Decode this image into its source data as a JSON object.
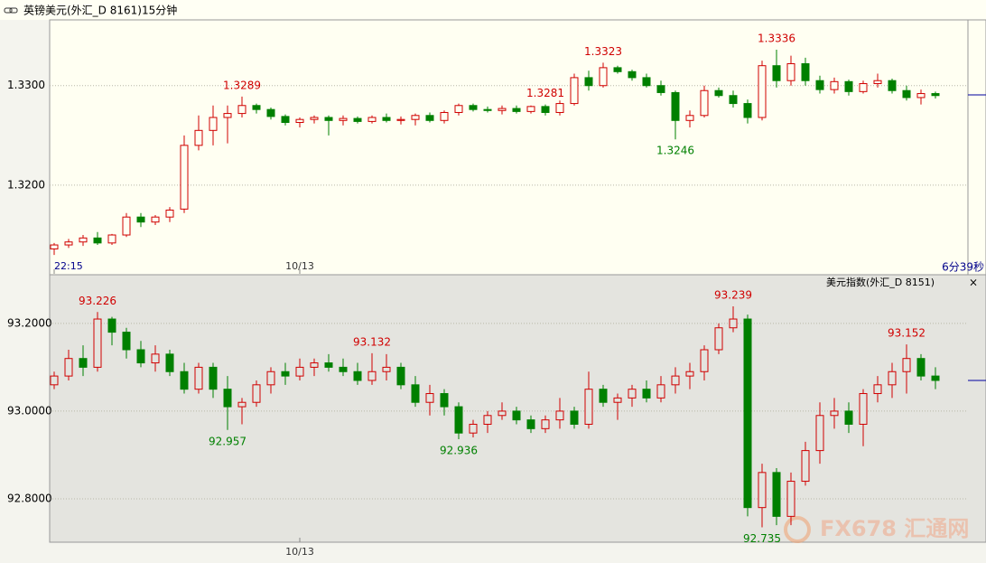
{
  "header": {
    "title": "英镑美元(外汇_D 8161)15分钟",
    "countdown": "6分39秒",
    "watermark": "FX678 汇通网"
  },
  "chart_data": [
    {
      "type": "candlestick",
      "title": "英镑美元(外汇_D 8161)15分钟",
      "ylim": [
        1.3111,
        1.3366
      ],
      "yticks": [
        {
          "value": 1.32,
          "label": "1.3200"
        },
        {
          "value": 1.33,
          "label": "1.3300"
        }
      ],
      "grid": true,
      "up_color": "#d00000",
      "down_color": "#008000",
      "categories": [
        "22:15",
        null,
        null,
        null,
        null,
        null,
        null,
        null,
        null,
        null,
        null,
        null,
        null,
        null,
        null,
        null,
        null,
        "10/13",
        null,
        null,
        null,
        null,
        null,
        null,
        null,
        null,
        null,
        null,
        null,
        null,
        null,
        null,
        null,
        null,
        null,
        null,
        null,
        null,
        null,
        null,
        null,
        null,
        null,
        null,
        null,
        null,
        null,
        null,
        null,
        null,
        null,
        null,
        null,
        null,
        null,
        null,
        null,
        null,
        null,
        null,
        null,
        null
      ],
      "annotations": [
        "1.3289",
        "1.3323",
        "1.3336",
        "1.3246",
        "1.3281"
      ],
      "series": [
        {
          "name": "英镑美元",
          "ohlc": [
            [
              1.3136,
              1.3142,
              1.313,
              1.314
            ],
            [
              1.314,
              1.3146,
              1.3137,
              1.3143
            ],
            [
              1.3143,
              1.315,
              1.3139,
              1.3147
            ],
            [
              1.3147,
              1.3153,
              1.314,
              1.3142
            ],
            [
              1.3142,
              1.3151,
              1.314,
              1.315
            ],
            [
              1.315,
              1.3172,
              1.3148,
              1.3168
            ],
            [
              1.3168,
              1.3172,
              1.3158,
              1.3163
            ],
            [
              1.3163,
              1.317,
              1.316,
              1.3168
            ],
            [
              1.3168,
              1.3178,
              1.3163,
              1.3175
            ],
            [
              1.3176,
              1.325,
              1.3172,
              1.324
            ],
            [
              1.324,
              1.327,
              1.3235,
              1.3255
            ],
            [
              1.3255,
              1.328,
              1.324,
              1.3268
            ],
            [
              1.3268,
              1.328,
              1.3242,
              1.3272
            ],
            [
              1.3272,
              1.3289,
              1.3268,
              1.328
            ],
            [
              1.328,
              1.3282,
              1.3272,
              1.3276
            ],
            [
              1.3276,
              1.3278,
              1.3266,
              1.3269
            ],
            [
              1.3269,
              1.3271,
              1.326,
              1.3263
            ],
            [
              1.3263,
              1.3268,
              1.3258,
              1.3266
            ],
            [
              1.3266,
              1.327,
              1.3262,
              1.3268
            ],
            [
              1.3268,
              1.327,
              1.325,
              1.3265
            ],
            [
              1.3265,
              1.327,
              1.326,
              1.3267
            ],
            [
              1.3267,
              1.3269,
              1.3262,
              1.3264
            ],
            [
              1.3264,
              1.327,
              1.3262,
              1.3268
            ],
            [
              1.3268,
              1.3272,
              1.3263,
              1.3265
            ],
            [
              1.3265,
              1.3269,
              1.3261,
              1.3266
            ],
            [
              1.3266,
              1.3272,
              1.326,
              1.327
            ],
            [
              1.327,
              1.3273,
              1.3263,
              1.3265
            ],
            [
              1.3265,
              1.3275,
              1.3262,
              1.3273
            ],
            [
              1.3273,
              1.3282,
              1.327,
              1.328
            ],
            [
              1.328,
              1.3282,
              1.3274,
              1.3276
            ],
            [
              1.3276,
              1.3279,
              1.3273,
              1.3275
            ],
            [
              1.3275,
              1.328,
              1.3271,
              1.3277
            ],
            [
              1.3277,
              1.328,
              1.3272,
              1.3274
            ],
            [
              1.3274,
              1.328,
              1.3272,
              1.3279
            ],
            [
              1.3279,
              1.3281,
              1.327,
              1.3273
            ],
            [
              1.3273,
              1.3285,
              1.327,
              1.3282
            ],
            [
              1.3282,
              1.3312,
              1.328,
              1.3308
            ],
            [
              1.3308,
              1.3315,
              1.3295,
              1.33
            ],
            [
              1.33,
              1.3323,
              1.3298,
              1.3318
            ],
            [
              1.3318,
              1.332,
              1.3312,
              1.3314
            ],
            [
              1.3314,
              1.3316,
              1.3305,
              1.3308
            ],
            [
              1.3308,
              1.3312,
              1.3298,
              1.33
            ],
            [
              1.33,
              1.3305,
              1.329,
              1.3293
            ],
            [
              1.3293,
              1.3295,
              1.3246,
              1.3265
            ],
            [
              1.3265,
              1.3275,
              1.3258,
              1.327
            ],
            [
              1.327,
              1.33,
              1.3268,
              1.3295
            ],
            [
              1.3295,
              1.3298,
              1.3288,
              1.329
            ],
            [
              1.329,
              1.3295,
              1.3278,
              1.3282
            ],
            [
              1.3282,
              1.3286,
              1.3262,
              1.3268
            ],
            [
              1.3268,
              1.3325,
              1.3265,
              1.332
            ],
            [
              1.332,
              1.3336,
              1.3298,
              1.3305
            ],
            [
              1.3305,
              1.333,
              1.33,
              1.3322
            ],
            [
              1.3322,
              1.3328,
              1.33,
              1.3305
            ],
            [
              1.3305,
              1.331,
              1.3292,
              1.3296
            ],
            [
              1.3296,
              1.3308,
              1.3292,
              1.3304
            ],
            [
              1.3304,
              1.3306,
              1.329,
              1.3294
            ],
            [
              1.3294,
              1.3305,
              1.3292,
              1.3302
            ],
            [
              1.3302,
              1.3312,
              1.3298,
              1.3305
            ],
            [
              1.3305,
              1.3307,
              1.3292,
              1.3295
            ],
            [
              1.3295,
              1.33,
              1.3285,
              1.3288
            ],
            [
              1.3288,
              1.3296,
              1.3281,
              1.3292
            ],
            [
              1.3292,
              1.3294,
              1.3287,
              1.329
            ]
          ]
        }
      ]
    },
    {
      "type": "candlestick",
      "title": "美元指数(外汇_D 8151)",
      "ylim": [
        92.701,
        93.309
      ],
      "yticks": [
        {
          "value": 92.8,
          "label": "92.8000"
        },
        {
          "value": 93.0,
          "label": "93.0000"
        },
        {
          "value": 93.2,
          "label": "93.2000"
        }
      ],
      "grid": true,
      "up_color": "#d00000",
      "down_color": "#008000",
      "categories": [
        null,
        null,
        null,
        null,
        null,
        null,
        null,
        null,
        null,
        null,
        null,
        null,
        null,
        null,
        null,
        null,
        null,
        "10/13",
        null,
        null,
        null,
        null,
        null,
        null,
        null,
        null,
        null,
        null,
        null,
        null,
        null,
        null,
        null,
        null,
        null,
        null,
        null,
        null,
        null,
        null,
        null,
        null,
        null,
        null,
        null,
        null,
        null,
        null,
        null,
        null,
        null,
        null,
        null,
        null,
        null,
        null,
        null,
        null,
        null,
        null,
        null,
        null
      ],
      "annotations": [
        "93.226",
        "92.957",
        "93.132",
        "92.936",
        "93.239",
        "92.735",
        "93.152"
      ],
      "series": [
        {
          "name": "美元指数",
          "ohlc": [
            [
              93.06,
              93.09,
              93.05,
              93.08
            ],
            [
              93.08,
              93.14,
              93.07,
              93.12
            ],
            [
              93.12,
              93.15,
              93.08,
              93.1
            ],
            [
              93.1,
              93.226,
              93.09,
              93.21
            ],
            [
              93.21,
              93.215,
              93.15,
              93.18
            ],
            [
              93.18,
              93.19,
              93.12,
              93.14
            ],
            [
              93.14,
              93.16,
              93.1,
              93.11
            ],
            [
              93.11,
              93.15,
              93.09,
              93.13
            ],
            [
              93.13,
              93.14,
              93.08,
              93.09
            ],
            [
              93.09,
              93.11,
              93.04,
              93.05
            ],
            [
              93.05,
              93.11,
              93.04,
              93.1
            ],
            [
              93.1,
              93.11,
              93.03,
              93.05
            ],
            [
              93.05,
              93.08,
              92.957,
              93.01
            ],
            [
              93.01,
              93.03,
              92.97,
              93.02
            ],
            [
              93.02,
              93.07,
              93.01,
              93.06
            ],
            [
              93.06,
              93.1,
              93.04,
              93.09
            ],
            [
              93.09,
              93.11,
              93.06,
              93.08
            ],
            [
              93.08,
              93.12,
              93.07,
              93.1
            ],
            [
              93.1,
              93.12,
              93.08,
              93.11
            ],
            [
              93.11,
              93.13,
              93.09,
              93.1
            ],
            [
              93.1,
              93.12,
              93.08,
              93.09
            ],
            [
              93.09,
              93.11,
              93.06,
              93.07
            ],
            [
              93.07,
              93.132,
              93.06,
              93.09
            ],
            [
              93.09,
              93.13,
              93.07,
              93.1
            ],
            [
              93.1,
              93.11,
              93.05,
              93.06
            ],
            [
              93.06,
              93.08,
              93.01,
              93.02
            ],
            [
              93.02,
              93.06,
              92.99,
              93.04
            ],
            [
              93.04,
              93.05,
              92.99,
              93.01
            ],
            [
              93.01,
              93.02,
              92.936,
              92.95
            ],
            [
              92.95,
              92.98,
              92.94,
              92.97
            ],
            [
              92.97,
              93.0,
              92.95,
              92.99
            ],
            [
              92.99,
              93.02,
              92.98,
              93.0
            ],
            [
              93.0,
              93.01,
              92.97,
              92.98
            ],
            [
              92.98,
              92.99,
              92.95,
              92.96
            ],
            [
              92.96,
              92.99,
              92.95,
              92.98
            ],
            [
              92.98,
              93.03,
              92.96,
              93.0
            ],
            [
              93.0,
              93.01,
              92.96,
              92.97
            ],
            [
              92.97,
              93.09,
              92.96,
              93.05
            ],
            [
              93.05,
              93.06,
              93.01,
              93.02
            ],
            [
              93.02,
              93.04,
              92.98,
              93.03
            ],
            [
              93.03,
              93.06,
              93.01,
              93.05
            ],
            [
              93.05,
              93.07,
              93.02,
              93.03
            ],
            [
              93.03,
              93.08,
              93.02,
              93.06
            ],
            [
              93.06,
              93.1,
              93.04,
              93.08
            ],
            [
              93.08,
              93.11,
              93.05,
              93.09
            ],
            [
              93.09,
              93.15,
              93.07,
              93.14
            ],
            [
              93.14,
              93.2,
              93.13,
              93.19
            ],
            [
              93.19,
              93.239,
              93.18,
              93.21
            ],
            [
              93.21,
              93.22,
              92.76,
              92.78
            ],
            [
              92.78,
              92.88,
              92.735,
              92.86
            ],
            [
              92.86,
              92.87,
              92.74,
              92.76
            ],
            [
              92.76,
              92.86,
              92.74,
              92.84
            ],
            [
              92.84,
              92.93,
              92.83,
              92.91
            ],
            [
              92.91,
              93.02,
              92.88,
              92.99
            ],
            [
              92.99,
              93.03,
              92.96,
              93.0
            ],
            [
              93.0,
              93.02,
              92.95,
              92.97
            ],
            [
              92.97,
              93.05,
              92.92,
              93.04
            ],
            [
              93.04,
              93.08,
              93.02,
              93.06
            ],
            [
              93.06,
              93.11,
              93.03,
              93.09
            ],
            [
              93.09,
              93.152,
              93.04,
              93.12
            ],
            [
              93.12,
              93.13,
              93.07,
              93.08
            ],
            [
              93.08,
              93.1,
              93.05,
              93.07
            ]
          ]
        }
      ]
    }
  ]
}
